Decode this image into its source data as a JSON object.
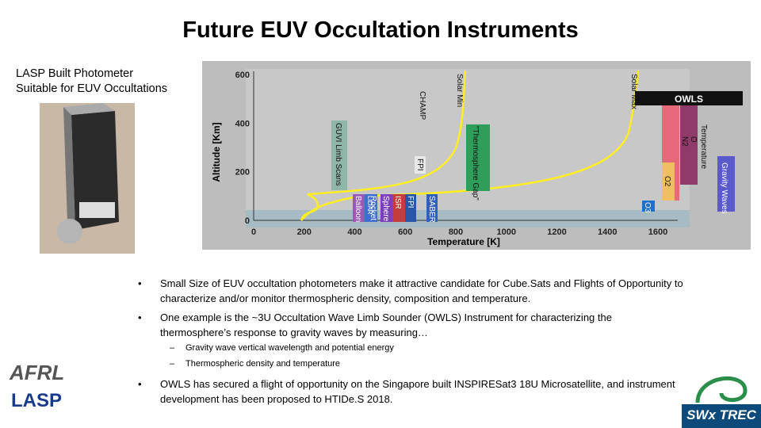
{
  "header": {
    "title": "Future EUV Occultation Instruments"
  },
  "caption": [
    "LASP Built Photometer",
    "Suitable for EUV Occultations"
  ],
  "figure": {
    "y_label": "Altitude [Km]",
    "x_label": "Temperature [K]",
    "y_ticks": [
      600,
      400,
      200,
      0
    ],
    "x_ticks": [
      0,
      200,
      400,
      600,
      800,
      1000,
      1200,
      1400,
      1600
    ],
    "labels": [
      "Solar Min",
      "Solar Max",
      "CHAMP",
      "\"Thermosphere Gap\"",
      "GUVI Limb Scans",
      "FPI",
      "ISR",
      "FPI",
      "SABER",
      "Sphere",
      "Rocket",
      "LIDAR",
      "Balloon",
      "OWLS",
      "Temperature",
      "O",
      "N2",
      "O2",
      "Gravity Waves",
      "O3"
    ]
  },
  "bullets": [
    "Small Size of EUV occultation photometers make it attractive candidate for Cube.Sats and Flights of Opportunity to characterize and/or monitor thermospheric density, composition and temperature.",
    "One example is the ~3U Occultation Wave Limb Sounder (OWLS) Instrument for characterizing the thermosphere’s response to gravity waves by measuring…",
    "OWLS has secured a flight of opportunity on the Singapore built INSPIRESat3 18U Microsatellite, and instrument development has been proposed to HTIDe.S 2018."
  ],
  "sub_bullets": [
    "Gravity wave vertical wavelength and potential energy",
    "Thermospheric density and temperature"
  ],
  "logos": [
    "AFRL",
    "LASP",
    "SWx TREC"
  ]
}
